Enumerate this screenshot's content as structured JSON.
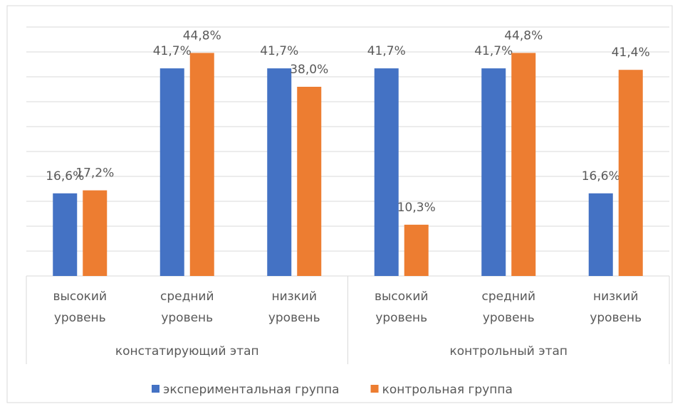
{
  "chart_data": {
    "type": "bar",
    "groups": [
      {
        "label": "констатирующий этап",
        "categories": [
          "высокий уровень",
          "средний уровень",
          "низкий уровень"
        ]
      },
      {
        "label": "контрольный этап",
        "categories": [
          "высокий уровень",
          "средний уровень",
          "низкий уровень"
        ]
      }
    ],
    "series": [
      {
        "name": "экспериментальная группа",
        "color": "#4472c4",
        "values": [
          16.6,
          41.7,
          41.7,
          41.7,
          41.7,
          16.6
        ],
        "value_labels": [
          "16,6%",
          "41,7%",
          "41,7%",
          "41,7%",
          "41,7%",
          "16,6%"
        ]
      },
      {
        "name": "контрольная группа",
        "color": "#ed7d31",
        "values": [
          17.2,
          44.8,
          38.0,
          10.3,
          44.8,
          41.4
        ],
        "value_labels": [
          "17,2%",
          "44,8%",
          "38,0%",
          "10,3%",
          "44,8%",
          "41,4%"
        ]
      }
    ],
    "ylim": [
      0,
      50
    ],
    "yticks": [
      0,
      5,
      10,
      15,
      20,
      25,
      30,
      35,
      40,
      45,
      50
    ],
    "grid": true,
    "legend": "bottom"
  }
}
